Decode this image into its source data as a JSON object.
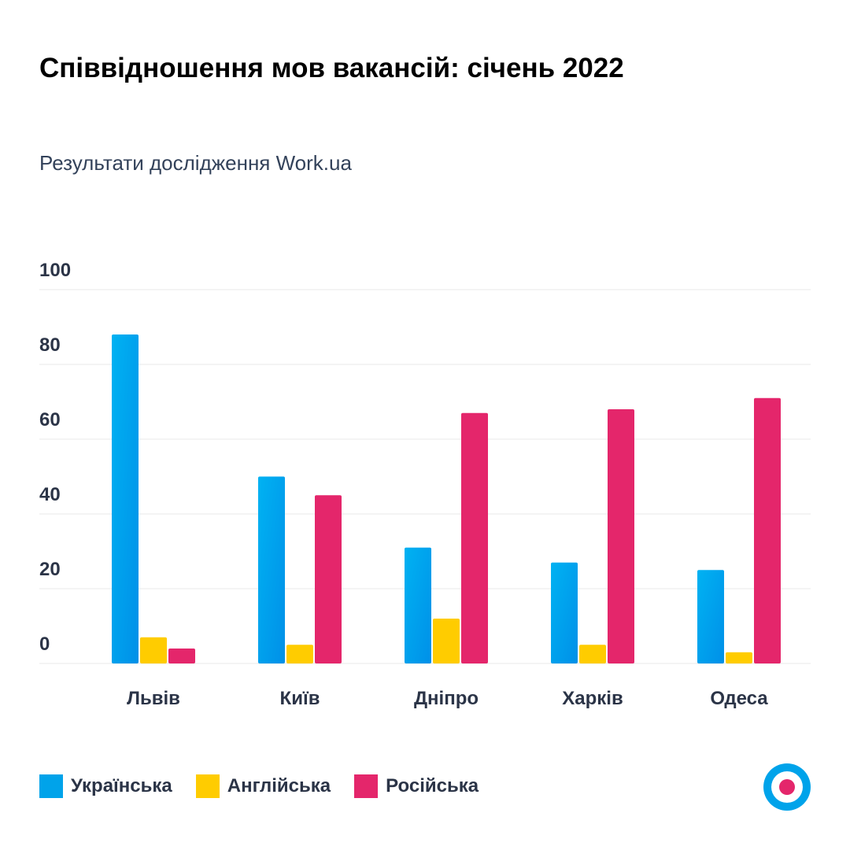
{
  "title": "Співвідношення мов вакансій: січень 2022",
  "subtitle": "Результати дослідження Work.ua",
  "chart_data": {
    "type": "bar",
    "title": "Співвідношення мов вакансій: січень 2022",
    "subtitle": "Результати дослідження Work.ua",
    "categories": [
      "Львів",
      "Київ",
      "Дніпро",
      "Харків",
      "Одеса"
    ],
    "series": [
      {
        "name": "Українська",
        "color": "#00a3ea",
        "values": [
          88,
          50,
          31,
          27,
          25
        ]
      },
      {
        "name": "Англійська",
        "color": "#ffcc00",
        "values": [
          7,
          5,
          12,
          5,
          3
        ]
      },
      {
        "name": "Російська",
        "color": "#e4266b",
        "values": [
          4,
          45,
          67,
          68,
          71
        ]
      }
    ],
    "yticks": [
      0,
      20,
      40,
      60,
      80,
      100
    ],
    "ylim": [
      0,
      100
    ],
    "grid": true,
    "legend": "bottom-left"
  },
  "logo": "work-ua-logo"
}
